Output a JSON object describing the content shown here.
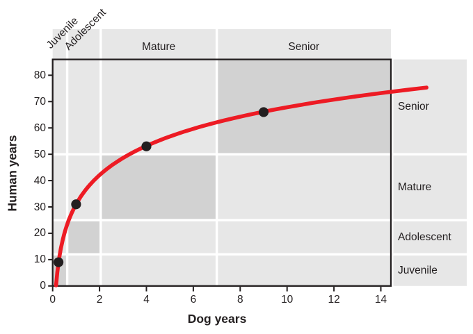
{
  "chart_data": {
    "type": "line",
    "title": "",
    "xlabel": "Dog years",
    "ylabel": "Human years",
    "xlim": [
      0,
      14.43
    ],
    "ylim": [
      0,
      86
    ],
    "x_ticks": [
      0,
      2,
      4,
      6,
      8,
      10,
      12,
      14
    ],
    "y_ticks": [
      0,
      10,
      20,
      30,
      40,
      50,
      60,
      70,
      80
    ],
    "grid": false,
    "legend": null,
    "curve": {
      "formula": "human_years = 16 * ln(dog_years) + 31",
      "a": 16,
      "b": 31,
      "x_start": 0.146,
      "x_end": 15.95,
      "color": "#ed1b24"
    },
    "points": [
      {
        "dog_years": 0.25,
        "human_years": 9
      },
      {
        "dog_years": 1,
        "human_years": 31
      },
      {
        "dog_years": 4,
        "human_years": 53
      },
      {
        "dog_years": 9,
        "human_years": 66
      }
    ],
    "stages": [
      {
        "name": "Juvenile",
        "dog_range": [
          0,
          0.62
        ],
        "human_range": [
          0,
          12
        ]
      },
      {
        "name": "Adolescent",
        "dog_range": [
          0.62,
          2.05
        ],
        "human_range": [
          12,
          25
        ]
      },
      {
        "name": "Mature",
        "dog_range": [
          2.05,
          7
        ],
        "human_range": [
          25,
          50
        ]
      },
      {
        "name": "Senior",
        "dog_range": [
          7,
          14.43
        ],
        "human_range": [
          50,
          86
        ]
      }
    ],
    "colors": {
      "band_light": "#e7e7e7",
      "band_dark": "#d2d2d2",
      "curve": "#ed1b24",
      "point": "#231f20",
      "axis": "#231f20",
      "text": "#231f20"
    }
  }
}
